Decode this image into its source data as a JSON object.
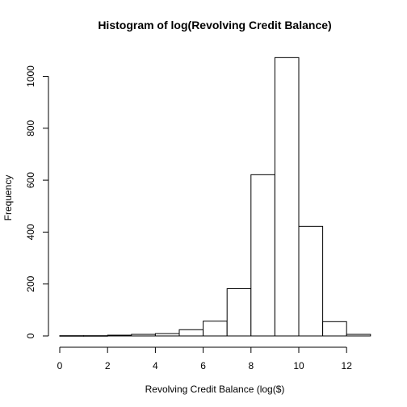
{
  "chart_data": {
    "type": "bar",
    "title": "Histogram of log(Revolving Credit Balance)",
    "xlabel": "Revolving Credit Balance (log($)",
    "ylabel": "Frequency",
    "x_ticks": [
      0,
      2,
      4,
      6,
      8,
      10,
      12
    ],
    "y_ticks": [
      0,
      200,
      400,
      600,
      800,
      1000
    ],
    "xlim": [
      0,
      13
    ],
    "ylim": [
      0,
      1070
    ],
    "bins": [
      {
        "start": 0,
        "end": 1,
        "value": 1
      },
      {
        "start": 1,
        "end": 2,
        "value": 1
      },
      {
        "start": 2,
        "end": 3,
        "value": 3
      },
      {
        "start": 3,
        "end": 4,
        "value": 6
      },
      {
        "start": 4,
        "end": 5,
        "value": 9
      },
      {
        "start": 5,
        "end": 6,
        "value": 24
      },
      {
        "start": 6,
        "end": 7,
        "value": 57
      },
      {
        "start": 7,
        "end": 8,
        "value": 182
      },
      {
        "start": 8,
        "end": 9,
        "value": 621
      },
      {
        "start": 9,
        "end": 10,
        "value": 1072
      },
      {
        "start": 10,
        "end": 11,
        "value": 422
      },
      {
        "start": 11,
        "end": 12,
        "value": 55
      },
      {
        "start": 12,
        "end": 13,
        "value": 6
      }
    ],
    "grid": false,
    "legend": "none"
  }
}
